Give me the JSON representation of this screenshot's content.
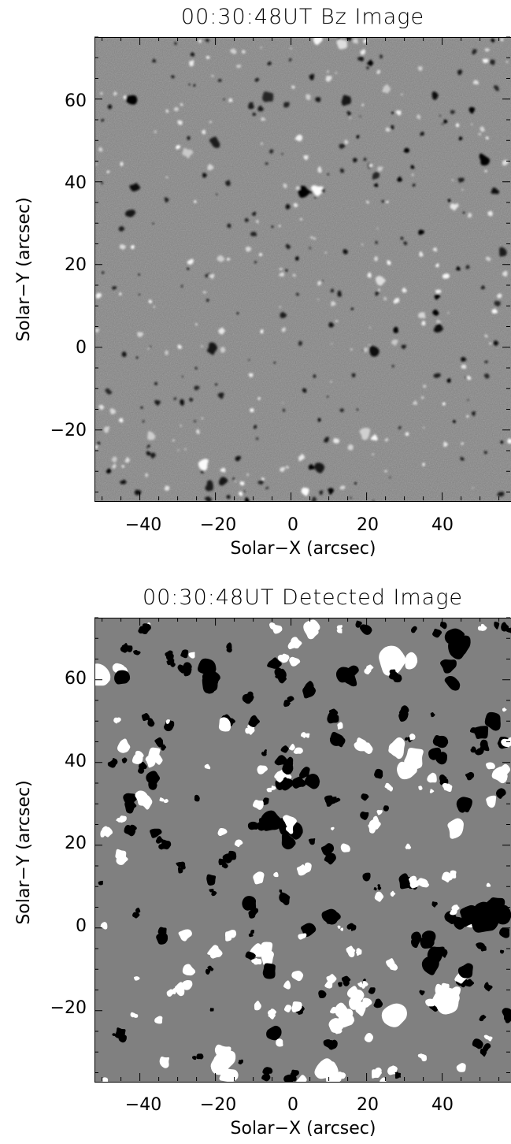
{
  "panels": [
    {
      "title": "00:30:48UT   Bz Image",
      "image": "grayscale magnetogram with bright and dark magnetic elements",
      "xlabel": "Solar−X (arcsec)",
      "ylabel": "Solar−Y (arcsec)",
      "xticks": [
        "−40",
        "−20",
        "0",
        "20",
        "40"
      ],
      "yticks": [
        "60",
        "40",
        "20",
        "0",
        "−20"
      ]
    },
    {
      "title": "00:30:48UT   Detected Image",
      "image": "segmented map: white positive and black negative features on gray background",
      "xlabel": "Solar−X (arcsec)",
      "ylabel": "Solar−Y (arcsec)",
      "xticks": [
        "−40",
        "−20",
        "0",
        "20",
        "40"
      ],
      "yticks": [
        "60",
        "40",
        "20",
        "0",
        "−20"
      ]
    }
  ],
  "axis_ranges": {
    "x": [
      -52,
      58
    ],
    "y": [
      -37,
      75
    ]
  },
  "colors": {
    "background": "#808080",
    "positive": "#ffffff",
    "negative": "#000000"
  }
}
